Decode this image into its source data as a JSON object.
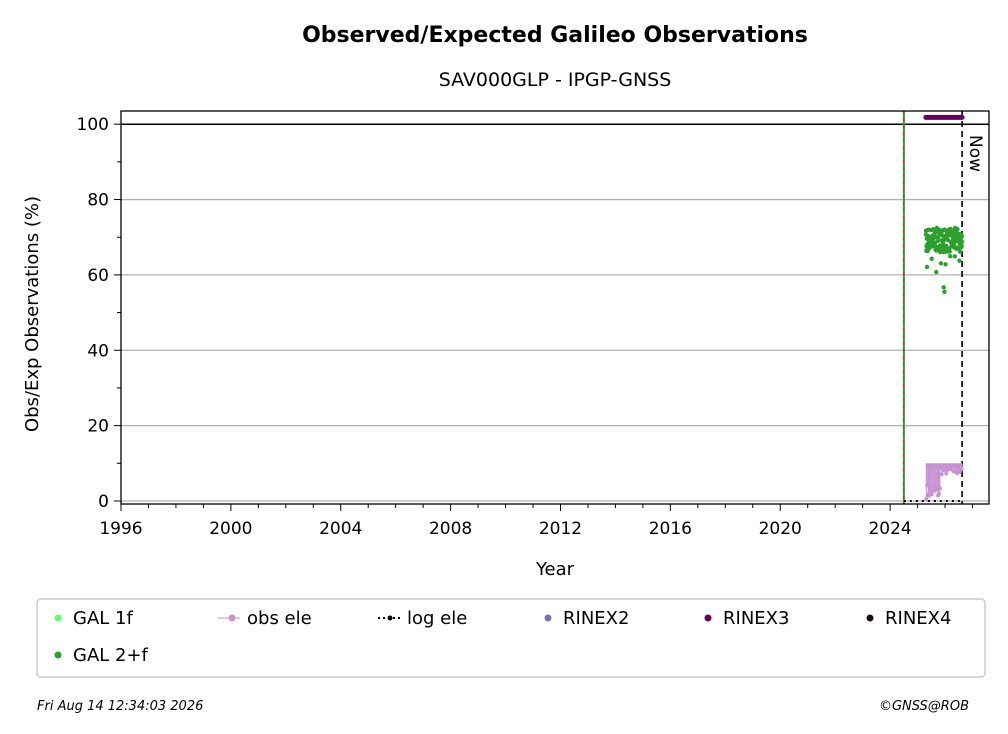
{
  "chart_data": {
    "type": "scatter",
    "title": "Observed/Expected Galileo Observations",
    "subtitle": "SAV000GLP - IPGP-GNSS",
    "xlabel": "Year",
    "ylabel": "Obs/Exp Observations (%)",
    "xlim": [
      1996,
      2027.6
    ],
    "ylim": [
      -0.8,
      103.5
    ],
    "xticks": [
      "1996",
      "2000",
      "2004",
      "2008",
      "2012",
      "2016",
      "2020",
      "2024"
    ],
    "yticks": [
      "0",
      "20",
      "40",
      "60",
      "80",
      "100"
    ],
    "grid": "horizontal",
    "reference_line": 100,
    "vertical_lines": [
      {
        "x": 2024.5,
        "style": "green-red-dashed"
      },
      {
        "x": 2026.62,
        "style": "black-dashed",
        "label": "Now"
      }
    ],
    "series": [
      {
        "name": "GAL 1f",
        "color": "#66ff66",
        "points": []
      },
      {
        "name": "obs ele",
        "color": "#c792d1",
        "x_range": [
          2025.3,
          2026.62
        ],
        "upper": 9.5,
        "lower_min": 0.5
      },
      {
        "name": "log ele",
        "color": "#000000",
        "style": "dotted",
        "x_range": [
          2024.5,
          2026.62
        ],
        "y": 0
      },
      {
        "name": "RINEX2",
        "color": "#7b6fb5",
        "points": []
      },
      {
        "name": "RINEX3",
        "color": "#6a005e",
        "x_range": [
          2025.3,
          2026.62
        ],
        "y": 101.8
      },
      {
        "name": "RINEX4",
        "color": "#1a0a1a",
        "points": []
      },
      {
        "name": "GAL 2+f",
        "color": "#2ca02c",
        "x_range": [
          2025.3,
          2026.62
        ],
        "typical": [
          66,
          72.5
        ],
        "minimum": 55.5
      }
    ]
  },
  "footer": {
    "timestamp": "Fri Aug 14 12:34:03 2026",
    "credit": "©GNSS@ROB"
  }
}
